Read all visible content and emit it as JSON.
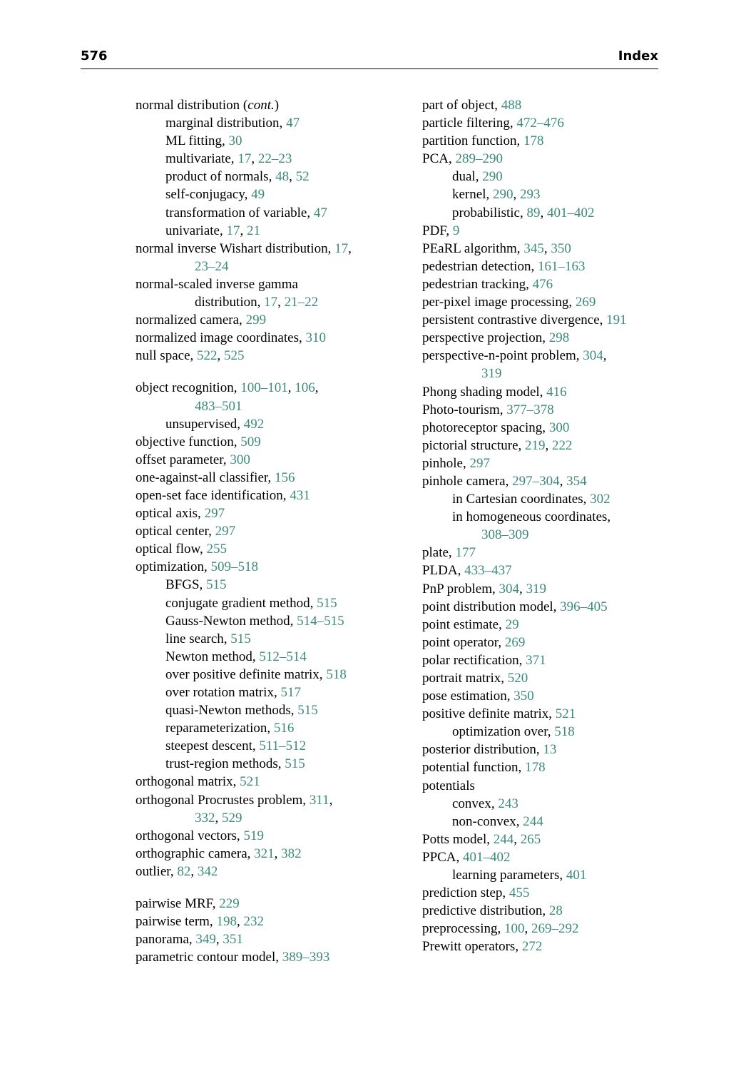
{
  "header": {
    "page_number": "576",
    "title": "Index"
  },
  "link_color": "#3c8a7c",
  "left_column": [
    {
      "level": 0,
      "parts": [
        "normal distribution (",
        {
          "i": "cont."
        },
        ")"
      ]
    },
    {
      "level": 1,
      "parts": [
        "marginal distribution, ",
        {
          "p": "47"
        }
      ]
    },
    {
      "level": 1,
      "parts": [
        "ML fitting, ",
        {
          "p": "30"
        }
      ]
    },
    {
      "level": 1,
      "parts": [
        "multivariate, ",
        {
          "p": "17"
        },
        ", ",
        {
          "p": "22–23"
        }
      ]
    },
    {
      "level": 1,
      "parts": [
        "product of normals, ",
        {
          "p": "48"
        },
        ", ",
        {
          "p": "52"
        }
      ]
    },
    {
      "level": 1,
      "parts": [
        "self-conjugacy, ",
        {
          "p": "49"
        }
      ]
    },
    {
      "level": 1,
      "parts": [
        "transformation of variable, ",
        {
          "p": "47"
        }
      ]
    },
    {
      "level": 1,
      "parts": [
        "univariate, ",
        {
          "p": "17"
        },
        ", ",
        {
          "p": "21"
        }
      ]
    },
    {
      "level": 0,
      "parts": [
        "normal inverse Wishart distribution, ",
        {
          "p": "17"
        },
        ","
      ]
    },
    {
      "level": 2,
      "parts": [
        {
          "p": "23–24"
        }
      ]
    },
    {
      "level": 0,
      "parts": [
        "normal-scaled inverse gamma"
      ]
    },
    {
      "level": 2,
      "parts": [
        "distribution, ",
        {
          "p": "17"
        },
        ", ",
        {
          "p": "21–22"
        }
      ]
    },
    {
      "level": 0,
      "parts": [
        "normalized camera, ",
        {
          "p": "299"
        }
      ]
    },
    {
      "level": 0,
      "parts": [
        "normalized image coordinates, ",
        {
          "p": "310"
        }
      ]
    },
    {
      "level": 0,
      "parts": [
        "null space, ",
        {
          "p": "522"
        },
        ", ",
        {
          "p": "525"
        }
      ]
    },
    {
      "gap": true
    },
    {
      "level": 0,
      "parts": [
        "object recognition, ",
        {
          "p": "100–101"
        },
        ", ",
        {
          "p": "106"
        },
        ","
      ]
    },
    {
      "level": 2,
      "parts": [
        {
          "p": "483–501"
        }
      ]
    },
    {
      "level": 1,
      "parts": [
        "unsupervised, ",
        {
          "p": "492"
        }
      ]
    },
    {
      "level": 0,
      "parts": [
        "objective function, ",
        {
          "p": "509"
        }
      ]
    },
    {
      "level": 0,
      "parts": [
        "offset parameter, ",
        {
          "p": "300"
        }
      ]
    },
    {
      "level": 0,
      "parts": [
        "one-against-all classifier, ",
        {
          "p": "156"
        }
      ]
    },
    {
      "level": 0,
      "parts": [
        "open-set face identification, ",
        {
          "p": "431"
        }
      ]
    },
    {
      "level": 0,
      "parts": [
        "optical axis, ",
        {
          "p": "297"
        }
      ]
    },
    {
      "level": 0,
      "parts": [
        "optical center, ",
        {
          "p": "297"
        }
      ]
    },
    {
      "level": 0,
      "parts": [
        "optical flow, ",
        {
          "p": "255"
        }
      ]
    },
    {
      "level": 0,
      "parts": [
        "optimization, ",
        {
          "p": "509–518"
        }
      ]
    },
    {
      "level": 1,
      "parts": [
        "BFGS, ",
        {
          "p": "515"
        }
      ]
    },
    {
      "level": 1,
      "parts": [
        "conjugate gradient method, ",
        {
          "p": "515"
        }
      ]
    },
    {
      "level": 1,
      "parts": [
        "Gauss-Newton method, ",
        {
          "p": "514–515"
        }
      ]
    },
    {
      "level": 1,
      "parts": [
        "line search, ",
        {
          "p": "515"
        }
      ]
    },
    {
      "level": 1,
      "parts": [
        "Newton method, ",
        {
          "p": "512–514"
        }
      ]
    },
    {
      "level": 1,
      "parts": [
        "over positive definite matrix, ",
        {
          "p": "518"
        }
      ]
    },
    {
      "level": 1,
      "parts": [
        "over rotation matrix, ",
        {
          "p": "517"
        }
      ]
    },
    {
      "level": 1,
      "parts": [
        "quasi-Newton methods, ",
        {
          "p": "515"
        }
      ]
    },
    {
      "level": 1,
      "parts": [
        "reparameterization, ",
        {
          "p": "516"
        }
      ]
    },
    {
      "level": 1,
      "parts": [
        "steepest descent, ",
        {
          "p": "511–512"
        }
      ]
    },
    {
      "level": 1,
      "parts": [
        "trust-region methods, ",
        {
          "p": "515"
        }
      ]
    },
    {
      "level": 0,
      "parts": [
        "orthogonal matrix, ",
        {
          "p": "521"
        }
      ]
    },
    {
      "level": 0,
      "parts": [
        "orthogonal Procrustes problem, ",
        {
          "p": "311"
        },
        ","
      ]
    },
    {
      "level": 2,
      "parts": [
        {
          "p": "332"
        },
        ", ",
        {
          "p": "529"
        }
      ]
    },
    {
      "level": 0,
      "parts": [
        "orthogonal vectors, ",
        {
          "p": "519"
        }
      ]
    },
    {
      "level": 0,
      "parts": [
        "orthographic camera, ",
        {
          "p": "321"
        },
        ", ",
        {
          "p": "382"
        }
      ]
    },
    {
      "level": 0,
      "parts": [
        "outlier, ",
        {
          "p": "82"
        },
        ", ",
        {
          "p": "342"
        }
      ]
    },
    {
      "gap": true
    },
    {
      "level": 0,
      "parts": [
        "pairwise MRF, ",
        {
          "p": "229"
        }
      ]
    },
    {
      "level": 0,
      "parts": [
        "pairwise term, ",
        {
          "p": "198"
        },
        ", ",
        {
          "p": "232"
        }
      ]
    },
    {
      "level": 0,
      "parts": [
        "panorama, ",
        {
          "p": "349"
        },
        ", ",
        {
          "p": "351"
        }
      ]
    },
    {
      "level": 0,
      "parts": [
        "parametric contour model, ",
        {
          "p": "389–393"
        }
      ]
    }
  ],
  "right_column": [
    {
      "level": 0,
      "parts": [
        "part of object, ",
        {
          "p": "488"
        }
      ]
    },
    {
      "level": 0,
      "parts": [
        "particle filtering, ",
        {
          "p": "472–476"
        }
      ]
    },
    {
      "level": 0,
      "parts": [
        "partition function, ",
        {
          "p": "178"
        }
      ]
    },
    {
      "level": 0,
      "parts": [
        "PCA, ",
        {
          "p": "289–290"
        }
      ]
    },
    {
      "level": 1,
      "parts": [
        "dual, ",
        {
          "p": "290"
        }
      ]
    },
    {
      "level": 1,
      "parts": [
        "kernel, ",
        {
          "p": "290"
        },
        ", ",
        {
          "p": "293"
        }
      ]
    },
    {
      "level": 1,
      "parts": [
        "probabilistic, ",
        {
          "p": "89"
        },
        ", ",
        {
          "p": "401–402"
        }
      ]
    },
    {
      "level": 0,
      "parts": [
        "PDF, ",
        {
          "p": "9"
        }
      ]
    },
    {
      "level": 0,
      "parts": [
        "PEaRL algorithm, ",
        {
          "p": "345"
        },
        ", ",
        {
          "p": "350"
        }
      ]
    },
    {
      "level": 0,
      "parts": [
        "pedestrian detection, ",
        {
          "p": "161–163"
        }
      ]
    },
    {
      "level": 0,
      "parts": [
        "pedestrian tracking, ",
        {
          "p": "476"
        }
      ]
    },
    {
      "level": 0,
      "parts": [
        "per-pixel image processing, ",
        {
          "p": "269"
        }
      ]
    },
    {
      "level": 0,
      "parts": [
        "persistent contrastive divergence, ",
        {
          "p": "191"
        }
      ]
    },
    {
      "level": 0,
      "parts": [
        "perspective projection, ",
        {
          "p": "298"
        }
      ]
    },
    {
      "level": 0,
      "parts": [
        "perspective-n-point problem, ",
        {
          "p": "304"
        },
        ","
      ]
    },
    {
      "level": 2,
      "parts": [
        {
          "p": "319"
        }
      ]
    },
    {
      "level": 0,
      "parts": [
        "Phong shading model, ",
        {
          "p": "416"
        }
      ]
    },
    {
      "level": 0,
      "parts": [
        "Photo-tourism, ",
        {
          "p": "377–378"
        }
      ]
    },
    {
      "level": 0,
      "parts": [
        "photoreceptor spacing, ",
        {
          "p": "300"
        }
      ]
    },
    {
      "level": 0,
      "parts": [
        "pictorial structure, ",
        {
          "p": "219"
        },
        ", ",
        {
          "p": "222"
        }
      ]
    },
    {
      "level": 0,
      "parts": [
        "pinhole, ",
        {
          "p": "297"
        }
      ]
    },
    {
      "level": 0,
      "parts": [
        "pinhole camera, ",
        {
          "p": "297–304"
        },
        ", ",
        {
          "p": "354"
        }
      ]
    },
    {
      "level": 1,
      "parts": [
        "in Cartesian coordinates, ",
        {
          "p": "302"
        }
      ]
    },
    {
      "level": 1,
      "parts": [
        "in homogeneous coordinates,"
      ]
    },
    {
      "level": 2,
      "parts": [
        {
          "p": "308–309"
        }
      ]
    },
    {
      "level": 0,
      "parts": [
        "plate, ",
        {
          "p": "177"
        }
      ]
    },
    {
      "level": 0,
      "parts": [
        "PLDA, ",
        {
          "p": "433–437"
        }
      ]
    },
    {
      "level": 0,
      "parts": [
        "PnP problem, ",
        {
          "p": "304"
        },
        ", ",
        {
          "p": "319"
        }
      ]
    },
    {
      "level": 0,
      "parts": [
        "point distribution model, ",
        {
          "p": "396–405"
        }
      ]
    },
    {
      "level": 0,
      "parts": [
        "point estimate, ",
        {
          "p": "29"
        }
      ]
    },
    {
      "level": 0,
      "parts": [
        "point operator, ",
        {
          "p": "269"
        }
      ]
    },
    {
      "level": 0,
      "parts": [
        "polar rectification, ",
        {
          "p": "371"
        }
      ]
    },
    {
      "level": 0,
      "parts": [
        "portrait matrix, ",
        {
          "p": "520"
        }
      ]
    },
    {
      "level": 0,
      "parts": [
        "pose estimation, ",
        {
          "p": "350"
        }
      ]
    },
    {
      "level": 0,
      "parts": [
        "positive definite matrix, ",
        {
          "p": "521"
        }
      ]
    },
    {
      "level": 1,
      "parts": [
        "optimization over, ",
        {
          "p": "518"
        }
      ]
    },
    {
      "level": 0,
      "parts": [
        "posterior distribution, ",
        {
          "p": "13"
        }
      ]
    },
    {
      "level": 0,
      "parts": [
        "potential function, ",
        {
          "p": "178"
        }
      ]
    },
    {
      "level": 0,
      "parts": [
        "potentials"
      ]
    },
    {
      "level": 1,
      "parts": [
        "convex, ",
        {
          "p": "243"
        }
      ]
    },
    {
      "level": 1,
      "parts": [
        "non-convex, ",
        {
          "p": "244"
        }
      ]
    },
    {
      "level": 0,
      "parts": [
        "Potts model, ",
        {
          "p": "244"
        },
        ", ",
        {
          "p": "265"
        }
      ]
    },
    {
      "level": 0,
      "parts": [
        "PPCA, ",
        {
          "p": "401–402"
        }
      ]
    },
    {
      "level": 1,
      "parts": [
        "learning parameters, ",
        {
          "p": "401"
        }
      ]
    },
    {
      "level": 0,
      "parts": [
        "prediction step, ",
        {
          "p": "455"
        }
      ]
    },
    {
      "level": 0,
      "parts": [
        "predictive distribution, ",
        {
          "p": "28"
        }
      ]
    },
    {
      "level": 0,
      "parts": [
        "preprocessing, ",
        {
          "p": "100"
        },
        ", ",
        {
          "p": "269–292"
        }
      ]
    },
    {
      "level": 0,
      "parts": [
        "Prewitt operators, ",
        {
          "p": "272"
        }
      ]
    }
  ]
}
